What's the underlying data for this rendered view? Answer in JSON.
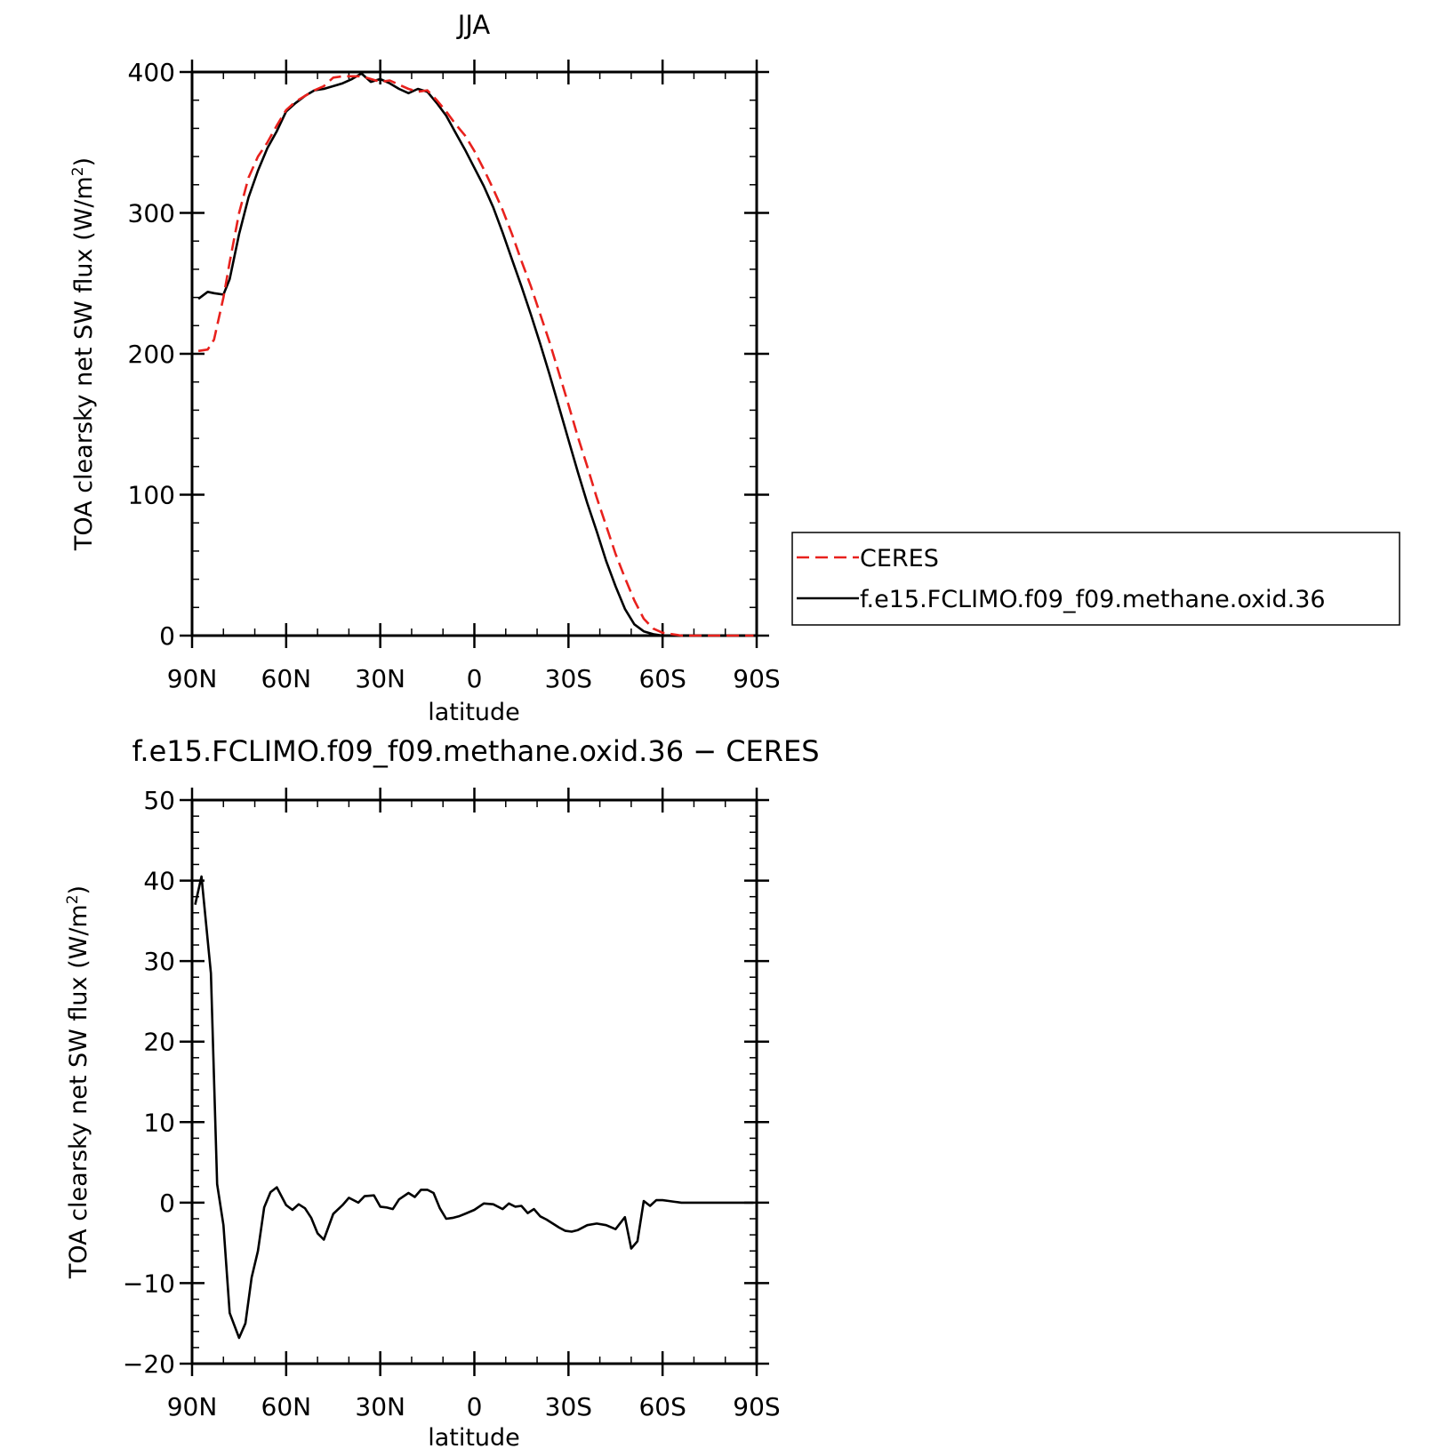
{
  "chart_data": [
    {
      "type": "line",
      "title": "JJA",
      "xlabel": "latitude",
      "ylabel": "TOA clearsky net SW flux (W/m",
      "ylabel_sup": "2",
      "ylabel_close": ")",
      "xlim": [
        90,
        -90
      ],
      "ylim": [
        0,
        400
      ],
      "yticks": [
        0,
        100,
        200,
        300,
        400
      ],
      "ytick_labels": [
        "0",
        "100",
        "200",
        "300",
        "400"
      ],
      "xticks": [
        90,
        60,
        30,
        0,
        -30,
        -60,
        -90
      ],
      "xtick_labels": [
        "90N",
        "60N",
        "30N",
        "0",
        "30S",
        "60S",
        "90S"
      ],
      "grid": false,
      "legend_position": "right",
      "series": [
        {
          "name": "CERES",
          "color": "#e8211d",
          "dash": "dashed",
          "x": [
            88,
            85,
            83,
            80,
            78,
            75,
            72,
            69,
            66,
            63,
            60,
            57,
            54,
            51,
            48,
            45,
            42,
            39,
            36,
            33,
            30,
            27,
            24,
            21,
            18,
            15,
            12,
            9,
            6,
            3,
            0,
            -3,
            -6,
            -9,
            -12,
            -15,
            -18,
            -21,
            -24,
            -27,
            -30,
            -33,
            -36,
            -39,
            -42,
            -45,
            -48,
            -51,
            -54,
            -57,
            -60,
            -63,
            -66,
            -69,
            -72,
            -75,
            -78,
            -81,
            -84,
            -87,
            -89
          ],
          "y": [
            202,
            203,
            210,
            240,
            265,
            300,
            325,
            340,
            350,
            362,
            373,
            379,
            383,
            387,
            390,
            396,
            397,
            397,
            397,
            395,
            393,
            394,
            391,
            388,
            386,
            387,
            380,
            372,
            363,
            355,
            344,
            331,
            317,
            302,
            285,
            266,
            248,
            228,
            208,
            186,
            164,
            141,
            120,
            98,
            78,
            58,
            41,
            25,
            12,
            5,
            2,
            1,
            0,
            0,
            0,
            0,
            0,
            0,
            0,
            0,
            0
          ]
        },
        {
          "name": "f.e15.FCLIMO.f09_f09.methane.oxid.36",
          "color": "#000000",
          "dash": "solid",
          "x": [
            88,
            85,
            83,
            80,
            78,
            75,
            72,
            69,
            66,
            63,
            60,
            57,
            54,
            51,
            48,
            45,
            42,
            39,
            36,
            33,
            30,
            27,
            24,
            21,
            18,
            15,
            12,
            9,
            6,
            3,
            0,
            -3,
            -6,
            -9,
            -12,
            -15,
            -18,
            -21,
            -24,
            -27,
            -30,
            -33,
            -36,
            -39,
            -42,
            -45,
            -48,
            -51,
            -54,
            -57,
            -60,
            -63,
            -66,
            -69,
            -72,
            -75,
            -78,
            -81,
            -84,
            -87,
            -89
          ],
          "y": [
            239,
            244,
            243,
            242,
            253,
            285,
            311,
            330,
            346,
            358,
            372,
            378,
            383,
            387,
            388,
            390,
            392,
            395,
            399,
            393,
            395,
            392,
            388,
            385,
            388,
            386,
            378,
            369,
            357,
            345,
            332,
            319,
            304,
            286,
            267,
            248,
            228,
            207,
            185,
            162,
            139,
            116,
            94,
            74,
            53,
            35,
            19,
            8,
            3,
            1,
            0,
            0,
            0,
            0,
            0,
            0,
            0,
            0,
            0,
            0,
            0
          ]
        }
      ]
    },
    {
      "type": "line",
      "title": "f.e15.FCLIMO.f09_f09.methane.oxid.36 − CERES",
      "xlabel": "latitude",
      "ylabel": "TOA clearsky net SW flux (W/m",
      "ylabel_sup": "2",
      "ylabel_close": ")",
      "xlim": [
        90,
        -90
      ],
      "ylim": [
        -20,
        50
      ],
      "yticks": [
        -20,
        -10,
        0,
        10,
        20,
        30,
        40,
        50
      ],
      "ytick_labels": [
        "−20",
        "−10",
        "0",
        "10",
        "20",
        "30",
        "40",
        "50"
      ],
      "xticks": [
        90,
        60,
        30,
        0,
        -30,
        -60,
        -90
      ],
      "xtick_labels": [
        "90N",
        "60N",
        "30N",
        "0",
        "30S",
        "60S",
        "90S"
      ],
      "grid": false,
      "series": [
        {
          "color": "#000000",
          "dash": "solid",
          "x": [
            89,
            87,
            84,
            82,
            80,
            78,
            75,
            73,
            71,
            69,
            67,
            65,
            63,
            60,
            58,
            56,
            54,
            52,
            50,
            48,
            45,
            42,
            40,
            37,
            35,
            32,
            30,
            28,
            26,
            24,
            21,
            19,
            17,
            15,
            13,
            11,
            9,
            7,
            5,
            3,
            0,
            -3,
            -6,
            -9,
            -11,
            -13,
            -15,
            -17,
            -19,
            -21,
            -23,
            -25,
            -27,
            -29,
            -31,
            -33,
            -36,
            -39,
            -42,
            -45,
            -48,
            -50,
            -52,
            -54,
            -56,
            -58,
            -60,
            -62,
            -64,
            -66,
            -68,
            -70,
            -72,
            -75,
            -78,
            -81,
            -84,
            -87,
            -89
          ],
          "y": [
            37,
            40.5,
            28.5,
            2.3,
            -2.8,
            -13.7,
            -16.8,
            -15,
            -9.3,
            -6,
            -0.6,
            1.3,
            1.9,
            -0.3,
            -0.9,
            -0.2,
            -0.7,
            -1.9,
            -3.8,
            -4.6,
            -1.4,
            -0.3,
            0.6,
            0,
            0.8,
            0.9,
            -0.5,
            -0.6,
            -0.8,
            0.4,
            1.2,
            0.7,
            1.6,
            1.6,
            1.2,
            -0.7,
            -2,
            -1.9,
            -1.7,
            -1.4,
            -0.9,
            -0.1,
            -0.2,
            -0.8,
            -0.1,
            -0.5,
            -0.4,
            -1.3,
            -0.8,
            -1.7,
            -2.1,
            -2.6,
            -3.1,
            -3.5,
            -3.6,
            -3.4,
            -2.8,
            -2.6,
            -2.8,
            -3.3,
            -1.8,
            -5.7,
            -4.8,
            0.2,
            -0.4,
            0.3,
            0.3,
            0.2,
            0.1,
            0,
            0,
            0,
            0,
            0,
            0,
            0,
            0,
            0,
            0
          ]
        }
      ]
    }
  ]
}
